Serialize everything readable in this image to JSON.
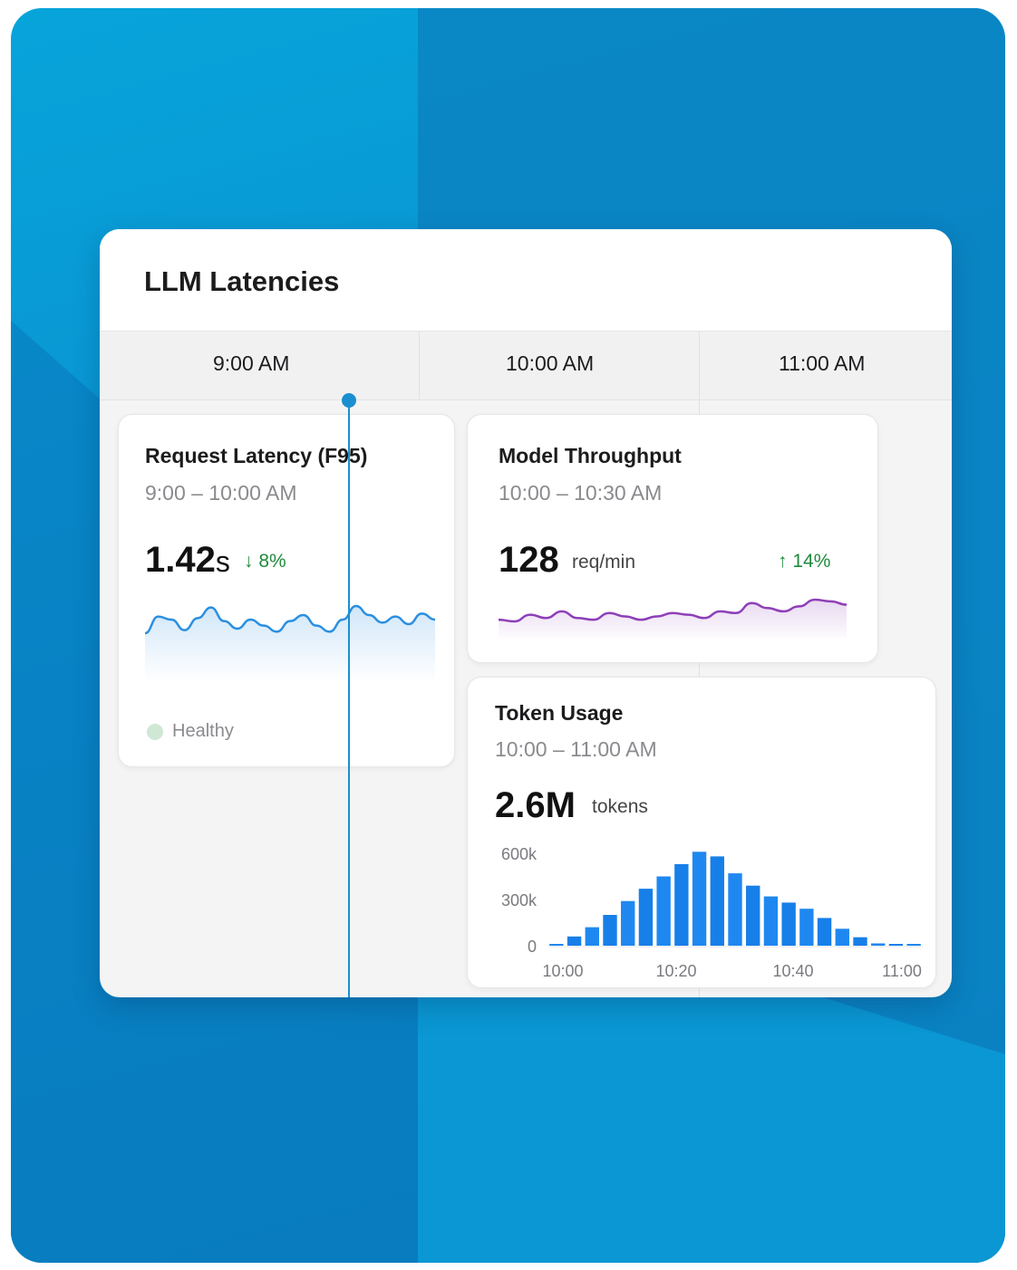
{
  "panel": {
    "title": "LLM Latencies"
  },
  "timeline": {
    "ticks": [
      "9:00 AM",
      "10:00 AM",
      "11:00 AM"
    ]
  },
  "colors": {
    "accent": "#1a8fd0",
    "latency_line": "#2b8fe0",
    "throughput_line": "#8e3fb8",
    "bars": "#1f88f0",
    "positive": "#1f8a3c"
  },
  "latency_card": {
    "title": "Request Latency (F95)",
    "range": "9:00 – 10:00 AM",
    "value": "1.42",
    "unit": "s",
    "delta": "↓ 8%",
    "status": "Healthy"
  },
  "throughput_card": {
    "title": "Model Throughput",
    "range": "10:00 – 10:30 AM",
    "value": "128",
    "unit": "req/min",
    "delta": "↑ 14%"
  },
  "tokens_card": {
    "title": "Token Usage",
    "range": "10:00 – 11:00 AM",
    "value": "2.6M",
    "unit": "tokens"
  },
  "chart_data": [
    {
      "type": "area",
      "values": [
        1.35,
        1.46,
        1.44,
        1.37,
        1.45,
        1.52,
        1.43,
        1.38,
        1.44,
        1.4,
        1.36,
        1.43,
        1.47,
        1.4,
        1.36,
        1.44,
        1.53,
        1.47,
        1.42,
        1.46,
        1.41,
        1.48,
        1.44
      ],
      "grid": false
    },
    {
      "type": "line",
      "values": [
        122,
        121,
        125,
        123,
        127,
        123,
        122,
        126,
        124,
        122,
        124,
        126,
        125,
        123,
        127,
        126,
        132,
        129,
        127,
        130,
        134,
        133,
        131
      ],
      "grid": false
    },
    {
      "type": "bar",
      "categories": [
        "10:00",
        "10:03",
        "10:06",
        "10:09",
        "10:12",
        "10:15",
        "10:18",
        "10:21",
        "10:24",
        "10:27",
        "10:30",
        "10:33",
        "10:36",
        "10:39",
        "10:42",
        "10:45",
        "10:48",
        "10:51",
        "10:54",
        "10:57",
        "11:00"
      ],
      "values": [
        5000,
        60000,
        120000,
        200000,
        290000,
        370000,
        450000,
        530000,
        610000,
        580000,
        470000,
        390000,
        320000,
        280000,
        240000,
        180000,
        110000,
        55000,
        15000,
        0,
        0
      ],
      "x_ticks": [
        "10:00",
        "10:20",
        "10:40",
        "11:00"
      ],
      "y_ticks": [
        "0",
        "300k",
        "600k"
      ],
      "ylim": [
        0,
        600000
      ]
    }
  ]
}
